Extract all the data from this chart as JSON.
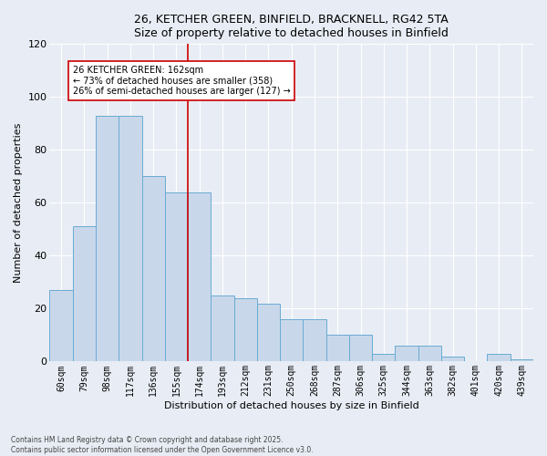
{
  "title_line1": "26, KETCHER GREEN, BINFIELD, BRACKNELL, RG42 5TA",
  "title_line2": "Size of property relative to detached houses in Binfield",
  "xlabel": "Distribution of detached houses by size in Binfield",
  "ylabel": "Number of detached properties",
  "categories": [
    "60sqm",
    "79sqm",
    "98sqm",
    "117sqm",
    "136sqm",
    "155sqm",
    "174sqm",
    "193sqm",
    "212sqm",
    "231sqm",
    "250sqm",
    "268sqm",
    "287sqm",
    "306sqm",
    "325sqm",
    "344sqm",
    "363sqm",
    "382sqm",
    "401sqm",
    "420sqm",
    "439sqm"
  ],
  "values": [
    27,
    51,
    93,
    93,
    70,
    64,
    64,
    25,
    24,
    22,
    16,
    16,
    10,
    10,
    3,
    6,
    6,
    2,
    0,
    3,
    1
  ],
  "bar_color": "#c8d8ea",
  "bar_edge_color": "#6aaad4",
  "vline_x": 5.5,
  "vline_color": "#cc0000",
  "annotation_text": "26 KETCHER GREEN: 162sqm\n← 73% of detached houses are smaller (358)\n26% of semi-detached houses are larger (127) →",
  "annotation_box_color": "#ffffff",
  "annotation_box_edge": "#cc0000",
  "ylim_max": 120,
  "yticks": [
    0,
    20,
    40,
    60,
    80,
    100,
    120
  ],
  "background_color": "#e8edf5",
  "grid_color": "#ffffff",
  "footer_line1": "Contains HM Land Registry data © Crown copyright and database right 2025.",
  "footer_line2": "Contains public sector information licensed under the Open Government Licence v3.0."
}
